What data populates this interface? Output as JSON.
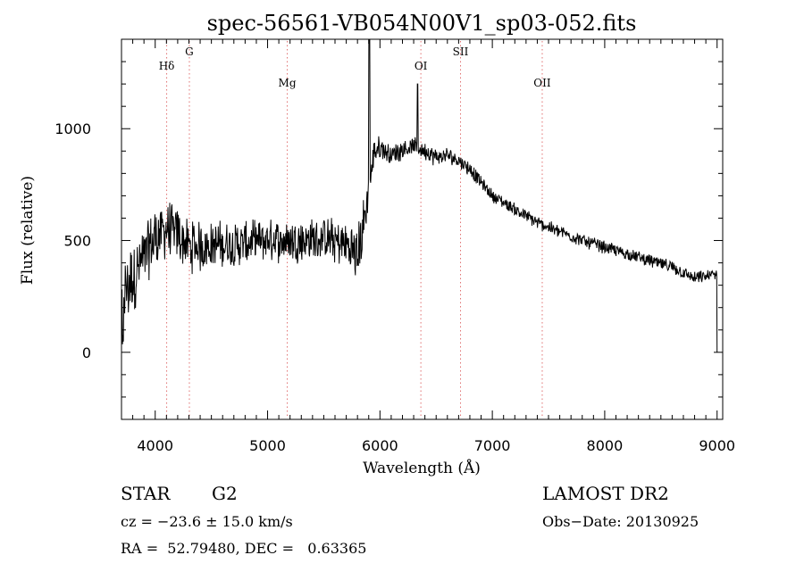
{
  "chart_data": {
    "type": "line",
    "title": "spec-56561-VB054N00V1_sp03-052.fits",
    "xlabel": "Wavelength (Å)",
    "ylabel": "Flux (relative)",
    "xlim": [
      3700,
      9050
    ],
    "ylim": [
      -300,
      1400
    ],
    "xticks": [
      4000,
      5000,
      6000,
      7000,
      8000,
      9000
    ],
    "xtick_labels": [
      "4000",
      "5000",
      "6000",
      "7000",
      "8000",
      "9000"
    ],
    "yticks": [
      0,
      500,
      1000
    ],
    "ytick_labels": [
      "0",
      "500",
      "1000"
    ],
    "grid": false,
    "line_color": "#000000",
    "marker_color": "#e07070",
    "lines": [
      {
        "label": "Hδ",
        "x": 4102
      },
      {
        "label": "G",
        "x": 4304
      },
      {
        "label": "Mg",
        "x": 5175
      },
      {
        "label": "OI",
        "x": 6364
      },
      {
        "label": "SII",
        "x": 6717
      },
      {
        "label": "OII",
        "x": 7444
      }
    ],
    "spectrum_envelope": {
      "x": [
        3700,
        3800,
        3900,
        4000,
        4100,
        4200,
        4300,
        4500,
        4700,
        5000,
        5300,
        5500,
        5700,
        5800,
        5850,
        5900,
        5950,
        6000,
        6100,
        6200,
        6300,
        6400,
        6500,
        6600,
        6700,
        6800,
        6900,
        7000,
        7200,
        7400,
        7600,
        7800,
        8000,
        8200,
        8400,
        8600,
        8800,
        8900,
        9000
      ],
      "y": [
        250,
        330,
        420,
        520,
        550,
        530,
        470,
        480,
        480,
        500,
        500,
        510,
        480,
        440,
        550,
        720,
        900,
        920,
        880,
        910,
        920,
        900,
        870,
        880,
        860,
        820,
        760,
        700,
        640,
        580,
        540,
        500,
        470,
        440,
        410,
        380,
        330,
        340,
        350
      ],
      "noise": [
        140,
        140,
        130,
        120,
        110,
        100,
        100,
        90,
        90,
        80,
        80,
        80,
        90,
        110,
        110,
        60,
        50,
        40,
        40,
        40,
        35,
        35,
        35,
        30,
        30,
        30,
        25,
        25,
        25,
        25,
        25,
        25,
        25,
        25,
        25,
        25,
        25,
        25,
        25
      ]
    }
  },
  "footer": {
    "object_class": "STAR",
    "subclass": "G2",
    "survey": "LAMOST DR2",
    "cz": "cz = −23.6 ± 15.0 km/s",
    "obs_date": "Obs−Date: 20130925",
    "coords": "RA =  52.79480, DEC =   0.63365"
  }
}
